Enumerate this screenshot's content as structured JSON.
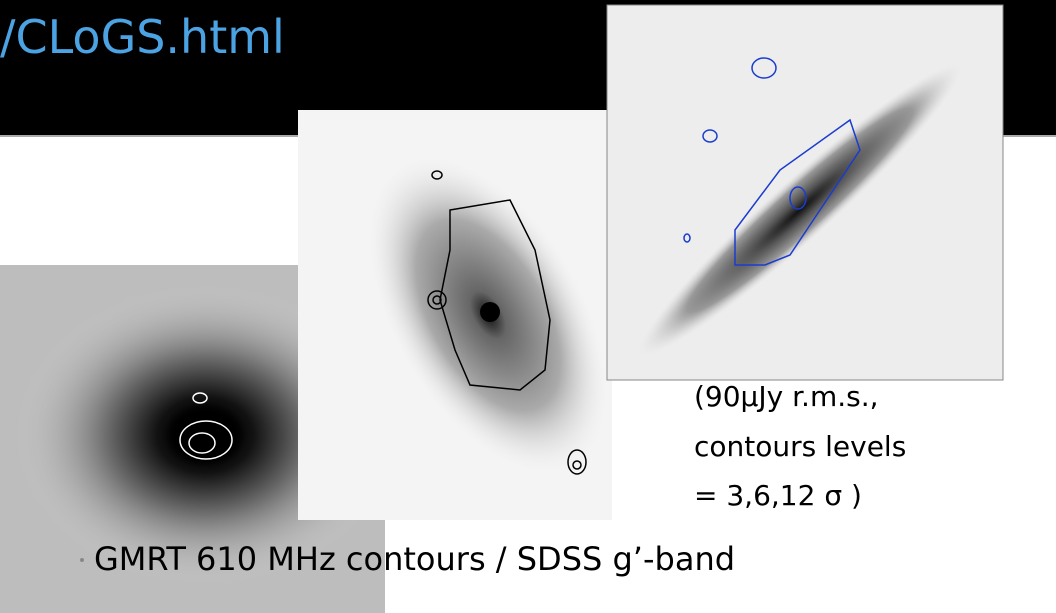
{
  "header": {
    "title": "/CLoGS.html"
  },
  "note": {
    "lines": [
      "(90µJy r.m.s.,",
      "contours levels",
      "= 3,6,12 σ )"
    ]
  },
  "caption": "GMRT 610 MHz contours / SDSS g’-band"
}
